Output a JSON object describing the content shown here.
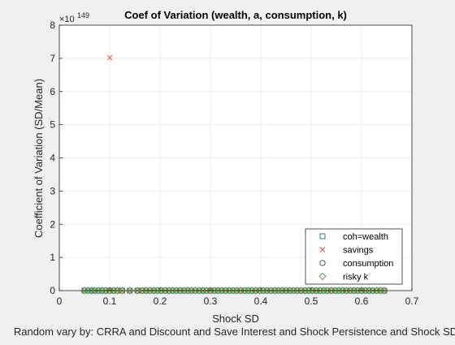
{
  "colors": {
    "figure_bg": "#f0f0f0",
    "axes_bg": "#ffffff",
    "grid": "#e6e6e6",
    "axis": "#262626",
    "coh": "#0072bd",
    "savings": "#d95319",
    "consumption": "#404040",
    "risky": "#41a845"
  },
  "chart_data": {
    "type": "scatter",
    "title": "Coef of Variation (wealth, a, consumption, k)",
    "xlabel": "Shock SD",
    "ylabel": "Coefficient of Variation (SD/Mean)",
    "footer": "Random vary by: CRRA and Discount and Save Interest and Shock Persistence and Shock SD",
    "exponent_label": "×10",
    "exponent_value": "149",
    "xlim": [
      0,
      0.7
    ],
    "ylim": [
      0,
      8
    ],
    "xticks": [
      "0",
      "0.1",
      "0.2",
      "0.3",
      "0.4",
      "0.5",
      "0.6",
      "0.7"
    ],
    "yticks": [
      "0",
      "1",
      "2",
      "3",
      "4",
      "5",
      "6",
      "7",
      "8"
    ],
    "grid": true,
    "legend_position": "bottom-right",
    "x": [
      0.05,
      0.057,
      0.064,
      0.07,
      0.078,
      0.085,
      0.092,
      0.1,
      0.108,
      0.115,
      0.125,
      0.14,
      0.155,
      0.165,
      0.172,
      0.18,
      0.188,
      0.195,
      0.202,
      0.21,
      0.218,
      0.225,
      0.232,
      0.24,
      0.248,
      0.255,
      0.262,
      0.27,
      0.278,
      0.285,
      0.292,
      0.3,
      0.308,
      0.315,
      0.322,
      0.33,
      0.338,
      0.345,
      0.352,
      0.36,
      0.368,
      0.375,
      0.382,
      0.39,
      0.398,
      0.405,
      0.412,
      0.42,
      0.428,
      0.435,
      0.442,
      0.45,
      0.458,
      0.465,
      0.472,
      0.48,
      0.488,
      0.495,
      0.502,
      0.51,
      0.518,
      0.525,
      0.532,
      0.54,
      0.548,
      0.555,
      0.562,
      0.57,
      0.578,
      0.585,
      0.592,
      0.6,
      0.608,
      0.615,
      0.622,
      0.63,
      0.638,
      0.645
    ],
    "series": [
      {
        "name": "coh=wealth",
        "marker": "square",
        "outlier": null
      },
      {
        "name": "savings",
        "marker": "x",
        "outlier": {
          "x": 0.1,
          "y": 7.02
        }
      },
      {
        "name": "consumption",
        "marker": "circle",
        "outlier": null
      },
      {
        "name": "risky k",
        "marker": "diamond",
        "outlier": null
      }
    ],
    "baseline_value": 0
  }
}
